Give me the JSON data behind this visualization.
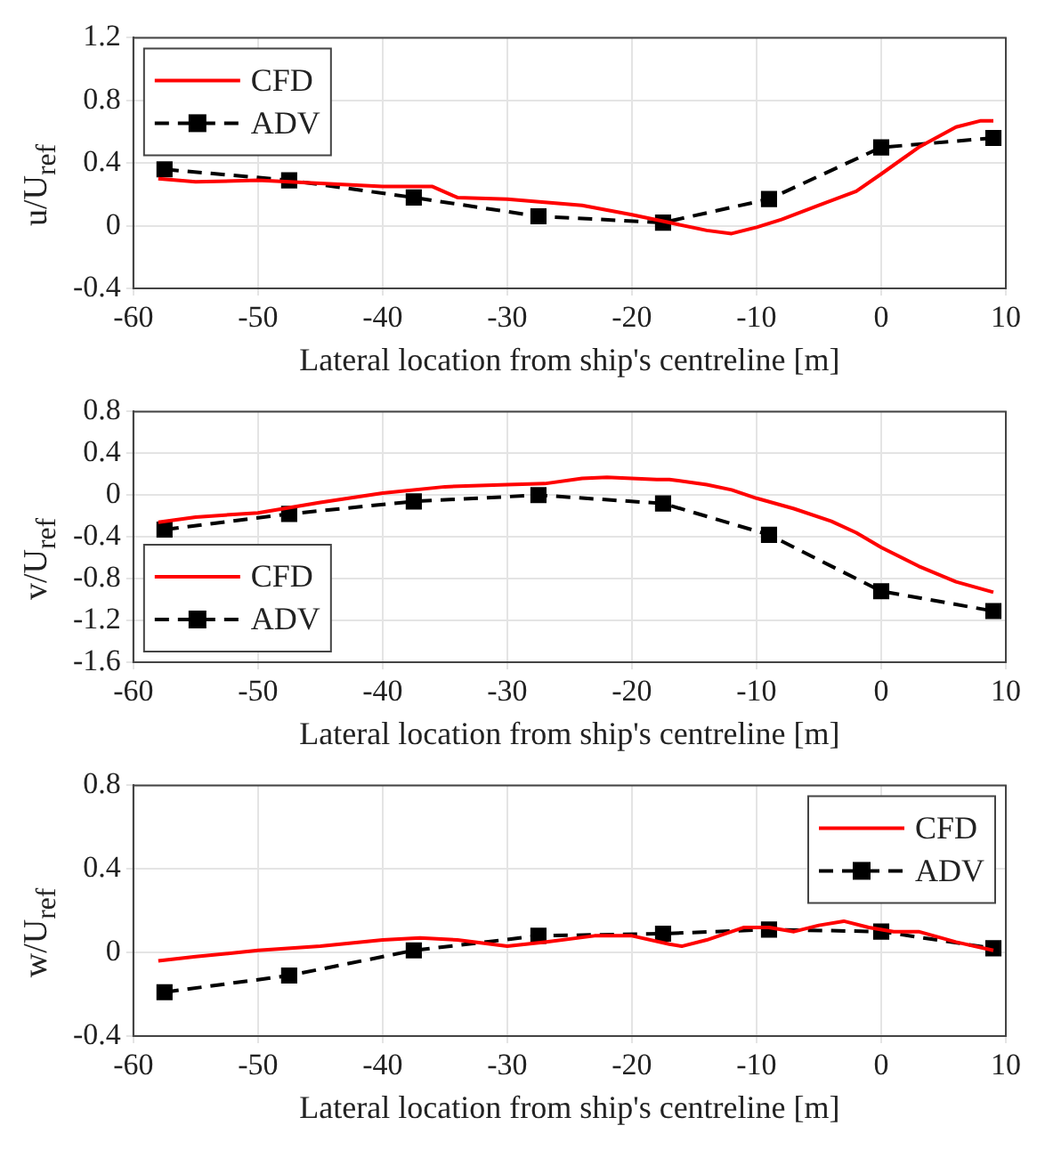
{
  "chart_data": [
    {
      "type": "line",
      "xlabel": "Lateral location from ship's centreline [m]",
      "ylabel": "u/U$_{ref}$",
      "xlim": [
        -60,
        10
      ],
      "xticks": [
        -60,
        -50,
        -40,
        -30,
        -20,
        -10,
        0,
        10
      ],
      "ylim": [
        -0.4,
        1.2
      ],
      "yticks": [
        -0.4,
        0,
        0.4,
        0.8,
        1.2
      ],
      "grid": true,
      "legend": "top left",
      "series": [
        {
          "name": "CFD",
          "color": "#ff0000",
          "line_style": "solid",
          "marker": "none",
          "x": [
            -58,
            -55,
            -50,
            -45,
            -40,
            -36,
            -34,
            -30,
            -27,
            -24,
            -20,
            -17,
            -14,
            -12,
            -10,
            -8,
            -5,
            -2,
            0,
            3,
            6,
            8,
            9
          ],
          "values": [
            0.3,
            0.28,
            0.29,
            0.27,
            0.25,
            0.25,
            0.18,
            0.17,
            0.15,
            0.13,
            0.07,
            0.02,
            -0.03,
            -0.05,
            -0.01,
            0.04,
            0.13,
            0.22,
            0.33,
            0.5,
            0.63,
            0.67,
            0.67
          ]
        },
        {
          "name": "ADV",
          "color": "#000000",
          "line_style": "dashed",
          "marker": "square",
          "x": [
            -57.5,
            -47.5,
            -37.5,
            -27.5,
            -17.5,
            -9,
            0,
            9
          ],
          "values": [
            0.36,
            0.29,
            0.18,
            0.06,
            0.02,
            0.17,
            0.5,
            0.56
          ]
        }
      ]
    },
    {
      "type": "line",
      "xlabel": "Lateral location from ship's centreline [m]",
      "ylabel": "v/U$_{ref}$",
      "xlim": [
        -60,
        10
      ],
      "xticks": [
        -60,
        -50,
        -40,
        -30,
        -20,
        -10,
        0,
        10
      ],
      "ylim": [
        -1.6,
        0.8
      ],
      "yticks": [
        -1.6,
        -1.2,
        -0.8,
        -0.4,
        0,
        0.4,
        0.8
      ],
      "grid": true,
      "legend": "bottom left",
      "series": [
        {
          "name": "CFD",
          "color": "#ff0000",
          "line_style": "solid",
          "marker": "none",
          "x": [
            -58,
            -55,
            -50,
            -45,
            -40,
            -35,
            -30,
            -27,
            -24,
            -22,
            -18,
            -17,
            -14,
            -12,
            -10,
            -7,
            -4,
            -2,
            0,
            3,
            6,
            9
          ],
          "values": [
            -0.26,
            -0.21,
            -0.17,
            -0.07,
            0.02,
            0.08,
            0.1,
            0.11,
            0.16,
            0.17,
            0.15,
            0.15,
            0.1,
            0.05,
            -0.03,
            -0.13,
            -0.25,
            -0.36,
            -0.5,
            -0.68,
            -0.83,
            -0.93
          ]
        },
        {
          "name": "ADV",
          "color": "#000000",
          "line_style": "dashed",
          "marker": "square",
          "x": [
            -57.5,
            -47.5,
            -37.5,
            -27.5,
            -17.5,
            -9,
            0,
            9
          ],
          "values": [
            -0.33,
            -0.18,
            -0.06,
            0.0,
            -0.08,
            -0.38,
            -0.92,
            -1.11
          ]
        }
      ]
    },
    {
      "type": "line",
      "xlabel": "Lateral location from ship's centreline [m]",
      "ylabel": "w/U$_{ref}$",
      "xlim": [
        -60,
        10
      ],
      "xticks": [
        -60,
        -50,
        -40,
        -30,
        -20,
        -10,
        0,
        10
      ],
      "ylim": [
        -0.4,
        0.8
      ],
      "yticks": [
        -0.4,
        0,
        0.4,
        0.8
      ],
      "grid": true,
      "legend": "top right",
      "series": [
        {
          "name": "CFD",
          "color": "#ff0000",
          "line_style": "solid",
          "marker": "none",
          "x": [
            -58,
            -55,
            -50,
            -45,
            -40,
            -37,
            -34,
            -30,
            -27,
            -23,
            -20,
            -17,
            -16,
            -14,
            -11,
            -9,
            -7,
            -5,
            -3,
            -1,
            1,
            3,
            6,
            9
          ],
          "values": [
            -0.04,
            -0.02,
            0.01,
            0.03,
            0.06,
            0.07,
            0.06,
            0.03,
            0.05,
            0.08,
            0.08,
            0.04,
            0.03,
            0.06,
            0.12,
            0.12,
            0.1,
            0.13,
            0.15,
            0.12,
            0.1,
            0.1,
            0.05,
            0.01
          ]
        },
        {
          "name": "ADV",
          "color": "#000000",
          "line_style": "dashed",
          "marker": "square",
          "x": [
            -57.5,
            -47.5,
            -37.5,
            -27.5,
            -17.5,
            -9,
            0,
            9
          ],
          "values": [
            -0.19,
            -0.11,
            0.01,
            0.08,
            0.09,
            0.11,
            0.1,
            0.02
          ]
        }
      ]
    }
  ]
}
